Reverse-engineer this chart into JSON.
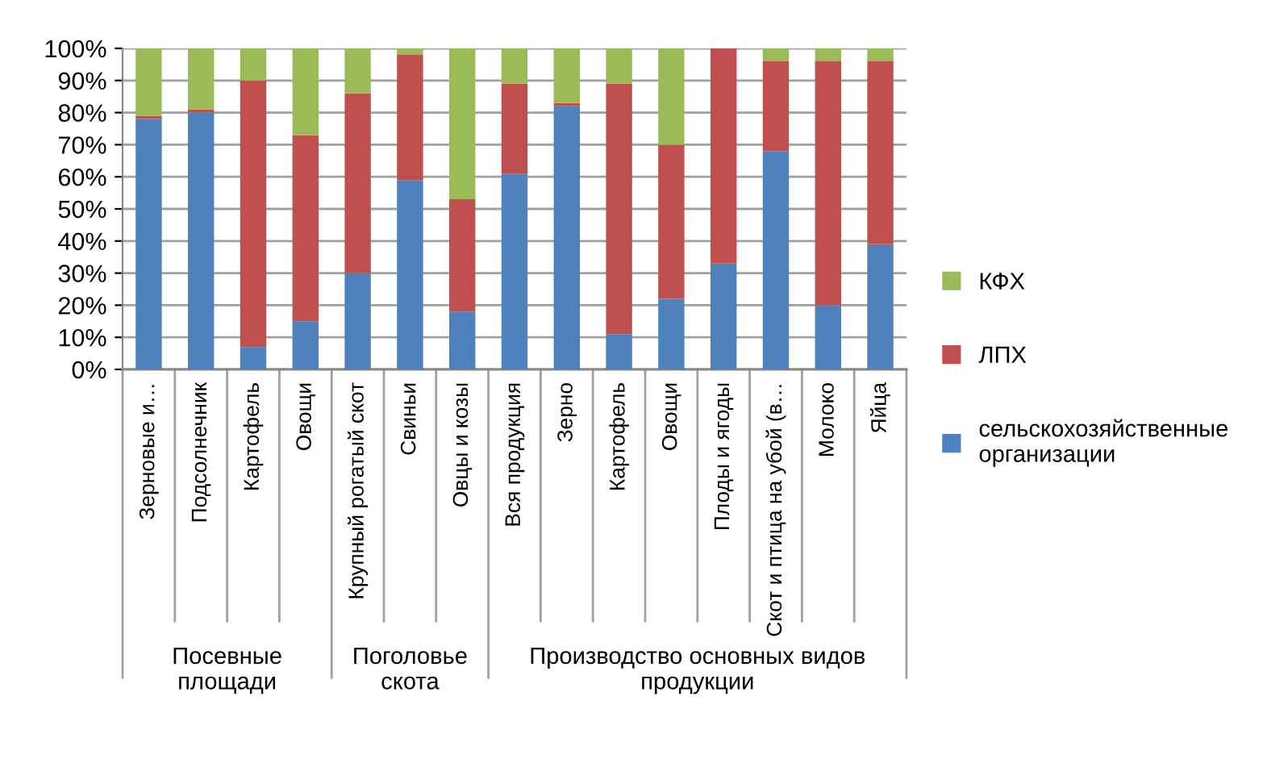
{
  "chart_data": {
    "type": "bar",
    "stacked": true,
    "categories": [
      "Зерновые и…",
      "Подсолнечник",
      "Картофель",
      "Овощи",
      "Крупный рогатый скот",
      "Свиньи",
      "Овцы и козы",
      "Вся продукция",
      "Зерно",
      "Картофель",
      "Овощи",
      "Плоды и ягоды",
      "Скот и птица на убой (в…",
      "Молоко",
      "Яйца"
    ],
    "series": [
      {
        "name": "сельскохозяйственные организации",
        "color": "#4f81bd",
        "values": [
          78,
          80,
          7,
          15,
          30,
          59,
          18,
          61,
          82,
          11,
          22,
          33,
          68,
          20,
          39
        ]
      },
      {
        "name": "ЛПХ",
        "color": "#c0504d",
        "values": [
          1,
          1,
          83,
          58,
          56,
          39,
          35,
          28,
          1,
          78,
          48,
          67,
          28,
          76,
          57
        ]
      },
      {
        "name": "КФХ",
        "color": "#9bbb59",
        "values": [
          21,
          19,
          10,
          27,
          14,
          2,
          47,
          11,
          17,
          11,
          30,
          0,
          4,
          4,
          4
        ]
      }
    ],
    "ylim": [
      0,
      100
    ],
    "yticks": [
      {
        "value": 0,
        "label": "0%"
      },
      {
        "value": 10,
        "label": "10%"
      },
      {
        "value": 20,
        "label": "20%"
      },
      {
        "value": 30,
        "label": "30%"
      },
      {
        "value": 40,
        "label": "40%"
      },
      {
        "value": 50,
        "label": "50%"
      },
      {
        "value": 60,
        "label": "60%"
      },
      {
        "value": 70,
        "label": "70%"
      },
      {
        "value": 80,
        "label": "80%"
      },
      {
        "value": 90,
        "label": "90%"
      },
      {
        "value": 100,
        "label": "100%"
      }
    ],
    "grid": "y",
    "legend": "right",
    "annotations": [
      "Посевные площади",
      "Поголовье скота",
      "Производство основных видов продукции"
    ]
  }
}
